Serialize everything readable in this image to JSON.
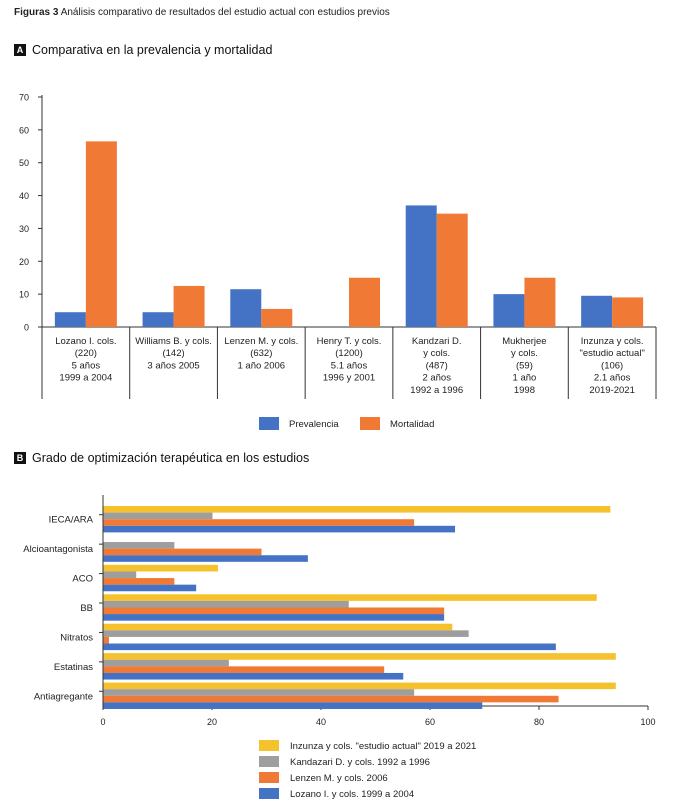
{
  "figure": {
    "label": "Figuras 3",
    "caption": "Análisis comparativo de resultados del estudio actual con estudios previos"
  },
  "panelA": {
    "letter": "A",
    "title": "Comparativa en la prevalencia y mortalidad"
  },
  "panelB": {
    "letter": "B",
    "title": "Grado de optimización terapéutica en los estudios"
  },
  "colors": {
    "prevalencia": "#4472C4",
    "mortalidad": "#F07A35",
    "inzunza": "#F5C22E",
    "kandazari": "#9E9E9E",
    "lenzen": "#F07A35",
    "lozano": "#4472C4"
  },
  "chart_data": [
    {
      "type": "bar",
      "title": "Comparativa en la prevalencia y mortalidad",
      "ylim": [
        0,
        70
      ],
      "yticks": [
        0,
        10,
        20,
        30,
        40,
        50,
        60,
        70
      ],
      "categories": [
        [
          "Lozano I. cols.",
          "(220)",
          "5 años",
          "1999 a 2004"
        ],
        [
          "Williams B. y cols.",
          "(142)",
          "3 años 2005"
        ],
        [
          "Lenzen M. y cols.",
          "(632)",
          "1 año 2006"
        ],
        [
          "Henry T. y cols.",
          "(1200)",
          "5.1 años",
          "1996 y 2001"
        ],
        [
          "Kandzari D.",
          "y cols.",
          "(487)",
          "2 años",
          "1992 a 1996"
        ],
        [
          "Mukherjee",
          "y cols.",
          "(59)",
          "1 año",
          "1998"
        ],
        [
          "Inzunza y cols.",
          "\"estudio actual\"",
          "(106)",
          "2.1 años",
          "2019-2021"
        ]
      ],
      "series": [
        {
          "name": "Prevalencia",
          "values": [
            4.5,
            4.5,
            11.5,
            0,
            37,
            10,
            9.5
          ]
        },
        {
          "name": "Mortalidad",
          "values": [
            56.5,
            12.5,
            5.5,
            15,
            34.5,
            15,
            9
          ]
        }
      ],
      "legend": "bottom"
    },
    {
      "type": "bar",
      "orientation": "horizontal",
      "title": "Grado de optimización terapéutica en los estudios",
      "xlim": [
        0,
        100
      ],
      "xticks": [
        0,
        20,
        40,
        60,
        80,
        100
      ],
      "categories": [
        "IECA/ARA",
        "Alcioantagonista",
        "ACO",
        "BB",
        "Nitratos",
        "Estatinas",
        "Antiagregante"
      ],
      "series": [
        {
          "name": "Inzunza y cols. \"estudio actual\" 2019 a 2021",
          "values": [
            93,
            0,
            21,
            90.5,
            64,
            94,
            94
          ]
        },
        {
          "name": "Kandazari D. y cols. 1992 a 1996",
          "values": [
            20,
            13,
            6,
            45,
            67,
            23,
            57
          ]
        },
        {
          "name": "Lenzen M. y cols. 2006",
          "values": [
            57,
            29,
            13,
            62.5,
            1,
            51.5,
            83.5
          ]
        },
        {
          "name": "Lozano I. y cols. 1999 a 2004",
          "values": [
            64.5,
            37.5,
            17,
            62.5,
            83,
            55,
            69.5
          ]
        }
      ],
      "legend": "bottom"
    }
  ]
}
